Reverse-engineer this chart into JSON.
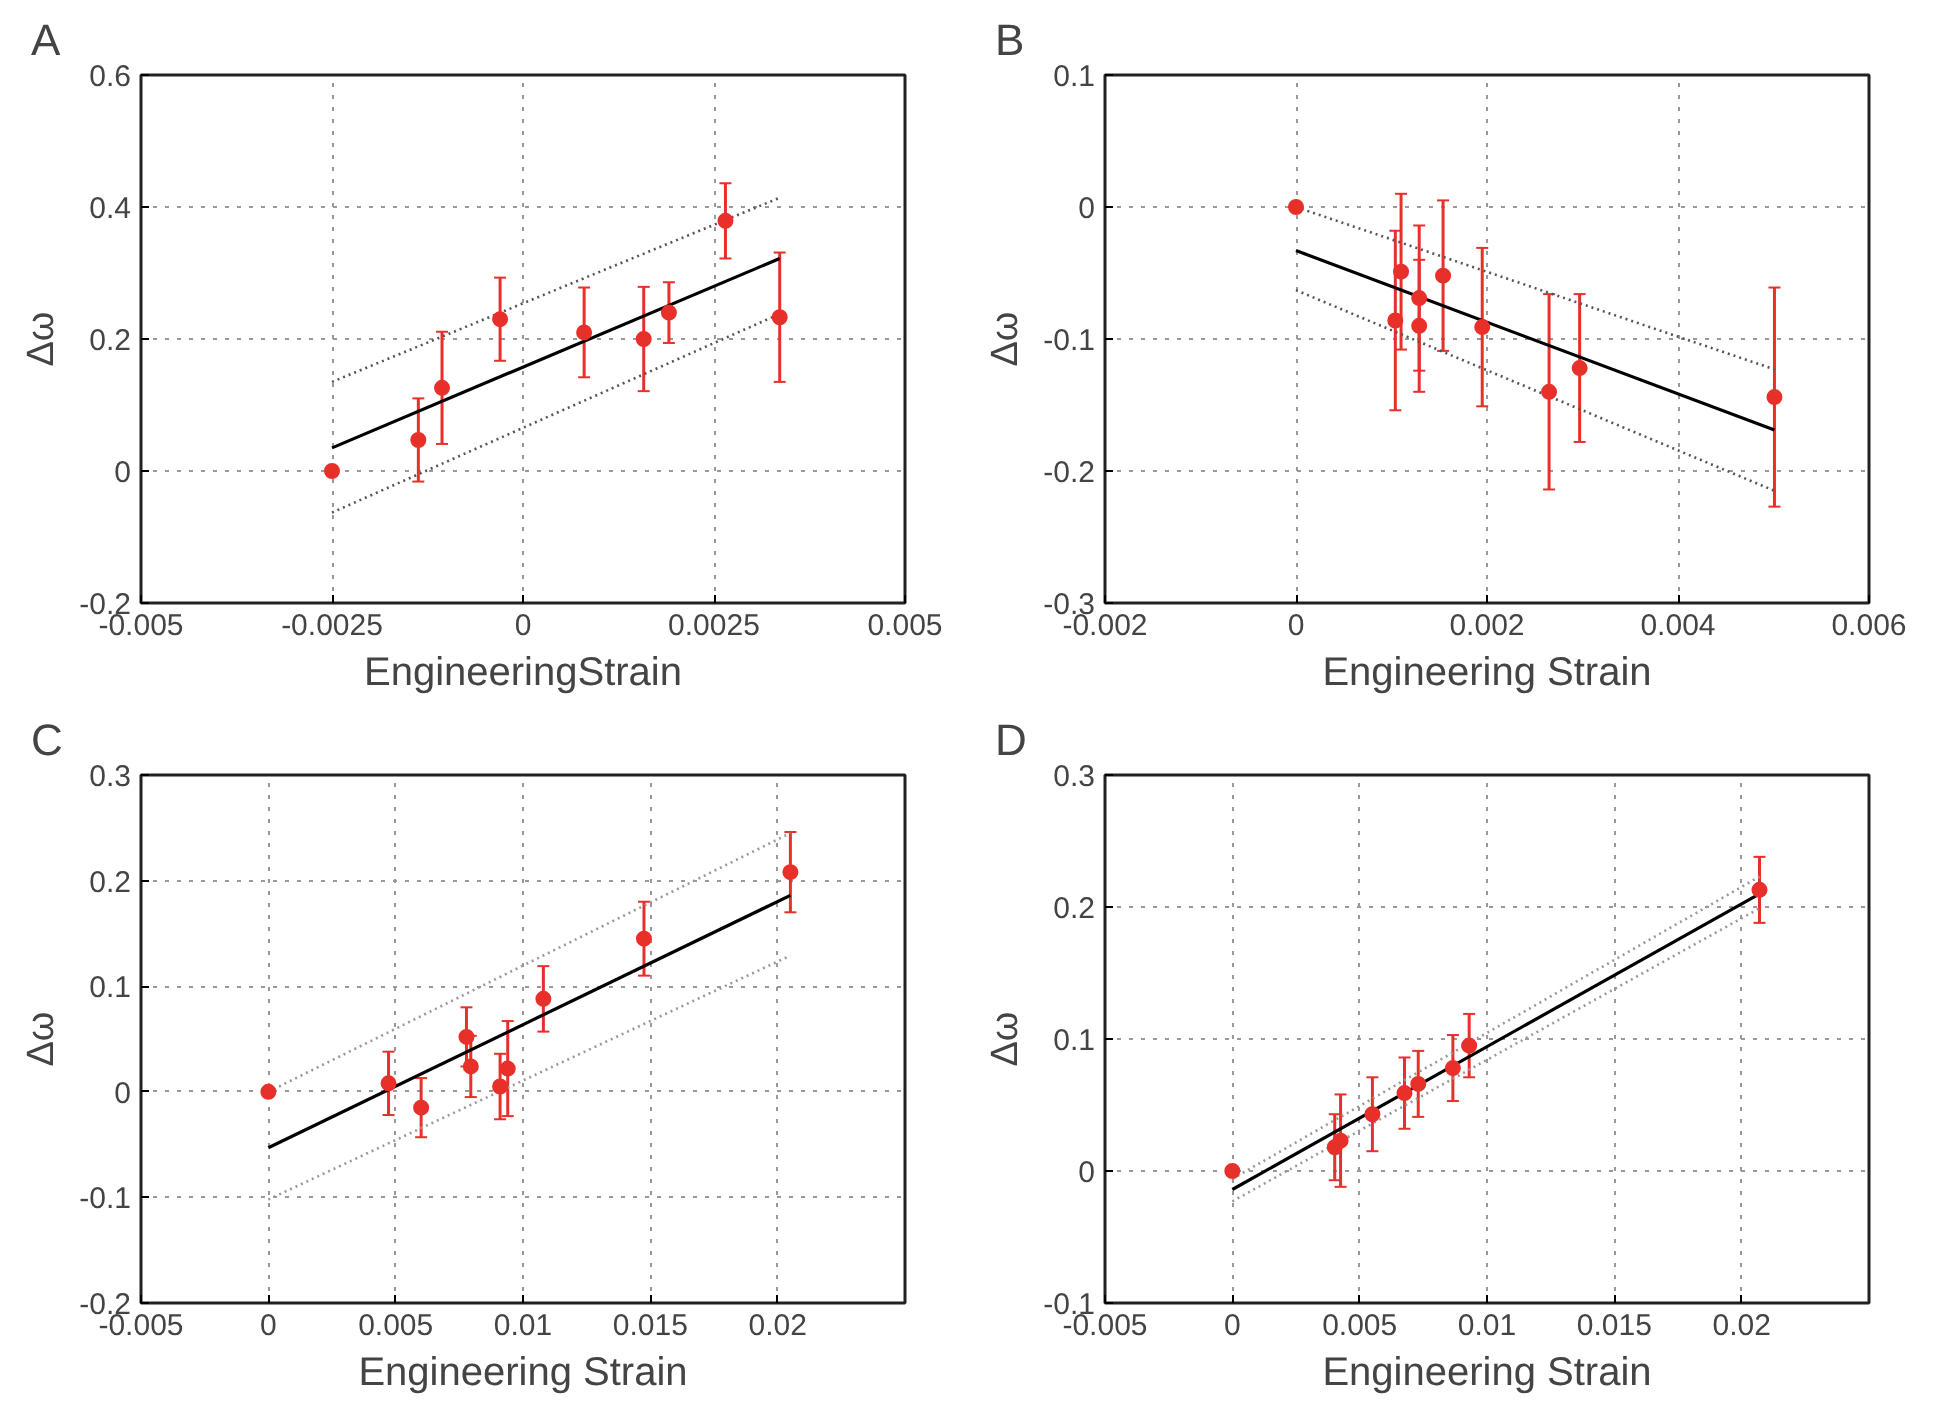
{
  "chart_data": [
    {
      "type": "scatter",
      "title": "A",
      "xlabel": "EngineeringStrain",
      "ylabel": "Δω",
      "xlim": [
        -0.005,
        0.005
      ],
      "ylim": [
        -0.2,
        0.6
      ],
      "xticks": [
        -0.005,
        -0.0025,
        0,
        0.0025,
        0.005
      ],
      "yticks": [
        -0.2,
        0,
        0.2,
        0.4,
        0.6
      ],
      "grid": true,
      "marker": "circle",
      "series": [
        {
          "color": "#e8302a",
          "x": [
            -0.0025,
            -0.00137,
            -0.00106,
            -0.0003,
            0.0008,
            0.00158,
            0.00191,
            0.00265,
            0.00336
          ],
          "values": [
            0,
            0.047,
            0.126,
            0.23,
            0.21,
            0.2,
            0.24,
            0.379,
            0.233
          ],
          "errors": [
            null,
            0.063,
            0.085,
            0.063,
            0.068,
            0.079,
            0.046,
            0.057,
            0.098
          ]
        },
        {
          "type": "line",
          "color": "#000000",
          "line_style": "solid",
          "marker": "none",
          "x": [
            -0.0025,
            0.00336
          ],
          "values": [
            0.035,
            0.322
          ]
        },
        {
          "type": "line",
          "color": "#555555",
          "line_style": "dotted",
          "marker": "none",
          "x": [
            -0.0025,
            0.00336
          ],
          "values": [
            0.135,
            0.414
          ]
        },
        {
          "type": "line",
          "color": "#555555",
          "line_style": "dotted",
          "marker": "none",
          "x": [
            -0.0025,
            0.00336
          ],
          "values": [
            -0.063,
            0.238
          ]
        }
      ]
    },
    {
      "type": "scatter",
      "title": "B",
      "xlabel": "Engineering Strain",
      "ylabel": "Δω",
      "xlim": [
        -0.002,
        0.006
      ],
      "ylim": [
        -0.3,
        0.1
      ],
      "xticks": [
        -0.002,
        0,
        0.002,
        0.004,
        0.006
      ],
      "yticks": [
        -0.3,
        -0.2,
        -0.1,
        0,
        0.1
      ],
      "grid": true,
      "marker": "circle",
      "series": [
        {
          "color": "#e8302a",
          "x": [
            0,
            0.00104,
            0.0011,
            0.00129,
            0.00129,
            0.00154,
            0.00195,
            0.00265,
            0.00297,
            0.00501
          ],
          "values": [
            0,
            -0.086,
            -0.049,
            -0.069,
            -0.09,
            -0.052,
            -0.091,
            -0.14,
            -0.122,
            -0.144
          ],
          "errors": [
            null,
            0.068,
            0.059,
            0.055,
            0.05,
            0.057,
            0.06,
            0.074,
            0.056,
            0.083
          ]
        },
        {
          "type": "line",
          "color": "#000000",
          "line_style": "solid",
          "marker": "none",
          "x": [
            0,
            0.00501
          ],
          "values": [
            -0.033,
            -0.169
          ]
        },
        {
          "type": "line",
          "color": "#555555",
          "line_style": "dotted",
          "marker": "none",
          "x": [
            0,
            0.00501
          ],
          "values": [
            0,
            -0.123
          ]
        },
        {
          "type": "line",
          "color": "#555555",
          "line_style": "dotted",
          "marker": "none",
          "x": [
            0,
            0.00501
          ],
          "values": [
            -0.063,
            -0.215
          ]
        }
      ]
    },
    {
      "type": "scatter",
      "title": "C",
      "xlabel": "Engineering Strain",
      "ylabel": "Δω",
      "xlim": [
        -0.005,
        0.025
      ],
      "ylim": [
        -0.2,
        0.3
      ],
      "xticks": [
        -0.005,
        0,
        0.005,
        0.01,
        0.015,
        0.02
      ],
      "yticks": [
        -0.2,
        -0.1,
        0,
        0.1,
        0.2,
        0.3
      ],
      "grid": true,
      "marker": "circle",
      "series": [
        {
          "color": "#e8302a",
          "x": [
            0,
            0.00472,
            0.006,
            0.00778,
            0.00795,
            0.0091,
            0.0094,
            0.0108,
            0.01475,
            0.0205
          ],
          "values": [
            0,
            0.008,
            -0.015,
            0.052,
            0.024,
            0.005,
            0.022,
            0.088,
            0.145,
            0.208
          ],
          "errors": [
            null,
            0.03,
            0.028,
            0.028,
            0.029,
            0.031,
            0.045,
            0.031,
            0.035,
            0.038
          ]
        },
        {
          "type": "line",
          "color": "#000000",
          "line_style": "solid",
          "marker": "none",
          "x": [
            0,
            0.0205
          ],
          "values": [
            -0.053,
            0.186
          ]
        },
        {
          "type": "line",
          "color": "#999999",
          "line_style": "dotted",
          "marker": "none",
          "x": [
            0,
            0.0205
          ],
          "values": [
            0,
            0.245
          ]
        },
        {
          "type": "line",
          "color": "#999999",
          "line_style": "dotted",
          "marker": "none",
          "x": [
            0,
            0.0205
          ],
          "values": [
            -0.102,
            0.129
          ]
        }
      ]
    },
    {
      "type": "scatter",
      "title": "D",
      "xlabel": "Engineering Strain",
      "ylabel": "Δω",
      "xlim": [
        -0.005,
        0.025
      ],
      "ylim": [
        -0.1,
        0.3
      ],
      "xticks": [
        -0.005,
        0,
        0.005,
        0.01,
        0.015,
        0.02
      ],
      "yticks": [
        -0.1,
        0,
        0.1,
        0.2,
        0.3
      ],
      "grid": true,
      "marker": "circle",
      "series": [
        {
          "color": "#e8302a",
          "x": [
            0,
            0.00402,
            0.00425,
            0.0055,
            0.00676,
            0.0073,
            0.00866,
            0.0093,
            0.0207
          ],
          "values": [
            0,
            0.018,
            0.023,
            0.043,
            0.059,
            0.066,
            0.078,
            0.095,
            0.213
          ],
          "errors": [
            null,
            0.025,
            0.035,
            0.028,
            0.027,
            0.025,
            0.025,
            0.024,
            0.025
          ]
        },
        {
          "type": "line",
          "color": "#000000",
          "line_style": "solid",
          "marker": "none",
          "x": [
            0,
            0.0207
          ],
          "values": [
            -0.014,
            0.21
          ]
        },
        {
          "type": "line",
          "color": "#999999",
          "line_style": "dotted",
          "marker": "none",
          "x": [
            0,
            0.0207
          ],
          "values": [
            -0.006,
            0.223
          ]
        },
        {
          "type": "line",
          "color": "#999999",
          "line_style": "dotted",
          "marker": "none",
          "x": [
            0,
            0.0207
          ],
          "values": [
            -0.023,
            0.199
          ]
        }
      ]
    }
  ]
}
